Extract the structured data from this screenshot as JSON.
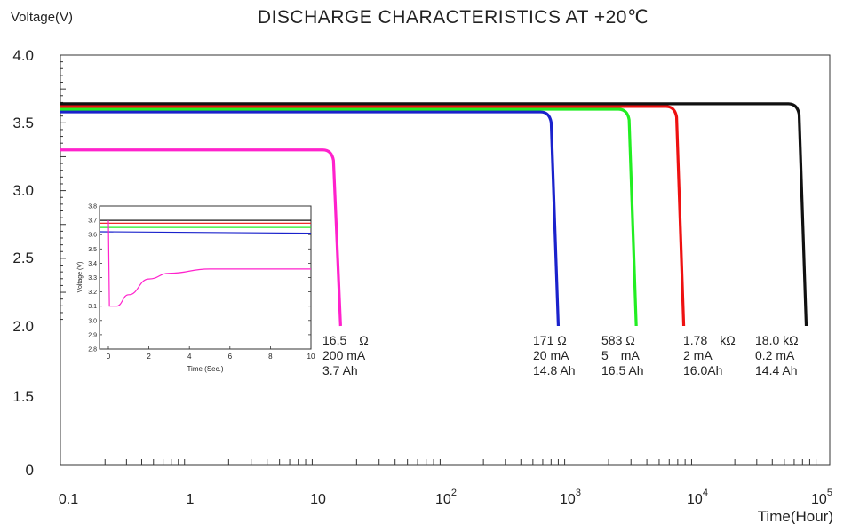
{
  "title": "DISCHARGE CHARACTERISTICS AT +20℃",
  "chart_data": {
    "type": "line",
    "title": "DISCHARGE CHARACTERISTICS AT +20℃",
    "ylabel": "Voltage(V)",
    "xlabel": "Time(Hour)",
    "x_scale": "log",
    "xlim": [
      0.1,
      100000
    ],
    "y_tick_labels": [
      "4.0",
      "3.5",
      "3.0",
      "2.5",
      "2.0",
      "1.5",
      "0"
    ],
    "x_tick_labels": [
      "0.1",
      "1",
      "10",
      "10²",
      "10³",
      "10⁴",
      "10⁵"
    ],
    "grid": false,
    "series": [
      {
        "color": "#ff22cc",
        "plateau_v": 3.3,
        "end_hours": 15,
        "labels": [
          "16.5　Ω",
          "200 mA",
          "3.7 Ah"
        ]
      },
      {
        "color": "#1a22cc",
        "plateau_v": 3.58,
        "end_hours": 800,
        "labels": [
          "171 Ω",
          "20 mA",
          "14.8 Ah"
        ]
      },
      {
        "color": "#22ee22",
        "plateau_v": 3.6,
        "end_hours": 3300,
        "labels": [
          "583 Ω",
          "5　mA",
          "16.5 Ah"
        ]
      },
      {
        "color": "#ee1111",
        "plateau_v": 3.62,
        "end_hours": 7800,
        "labels": [
          "1.78　kΩ",
          "2 mA",
          "16.0Ah"
        ]
      },
      {
        "color": "#111111",
        "plateau_v": 3.64,
        "end_hours": 75000,
        "labels": [
          "18.0 kΩ",
          "0.2 mA",
          "14.4 Ah"
        ]
      }
    ],
    "inset": {
      "type": "line",
      "xlabel": "Time (Sec.)",
      "ylabel": "Voltage (V)",
      "xlim": [
        0,
        10
      ],
      "ylim": [
        2.8,
        3.8
      ],
      "x_tick_labels": [
        "0",
        "2",
        "4",
        "6",
        "8",
        "10"
      ],
      "y_tick_labels": [
        "3.8",
        "3.7",
        "3.6",
        "3.5",
        "3.4",
        "3.3",
        "3.2",
        "3.1",
        "3.0",
        "2.9",
        "2.8"
      ],
      "series": [
        {
          "color": "#111111",
          "values": [
            [
              0,
              3.7
            ],
            [
              10,
              3.7
            ]
          ]
        },
        {
          "color": "#ee1111",
          "values": [
            [
              0,
              3.68
            ],
            [
              10,
              3.68
            ]
          ]
        },
        {
          "color": "#22ee22",
          "values": [
            [
              0,
              3.65
            ],
            [
              10,
              3.65
            ]
          ]
        },
        {
          "color": "#1a22cc",
          "values": [
            [
              0,
              3.62
            ],
            [
              10,
              3.61
            ]
          ]
        },
        {
          "color": "#ff22cc",
          "values": [
            [
              0,
              3.7
            ],
            [
              0.05,
              3.1
            ],
            [
              0.4,
              3.1
            ],
            [
              1,
              3.18
            ],
            [
              2,
              3.29
            ],
            [
              3,
              3.33
            ],
            [
              5,
              3.36
            ],
            [
              10,
              3.36
            ]
          ]
        }
      ]
    }
  }
}
